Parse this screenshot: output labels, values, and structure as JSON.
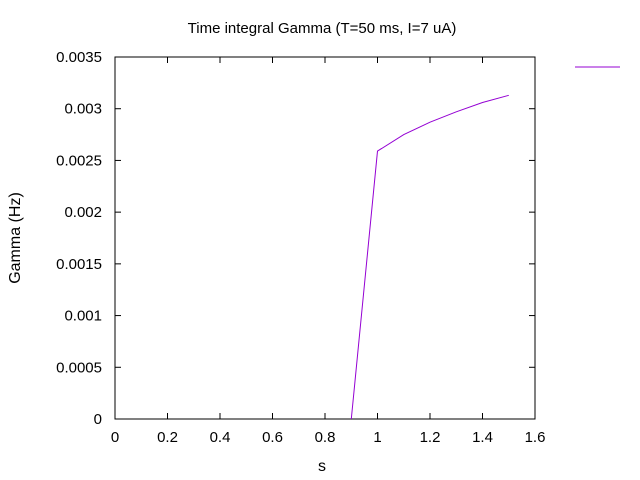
{
  "chart_data": {
    "type": "line",
    "title": "Time integral Gamma (T=50 ms, I=7 uA)",
    "xlabel": "s",
    "ylabel": "Gamma (Hz)",
    "xlim": [
      0,
      1.6
    ],
    "ylim": [
      0,
      0.0035
    ],
    "xticks": [
      "0",
      "0.2",
      "0.4",
      "0.6",
      "0.8",
      "1",
      "1.2",
      "1.4",
      "1.6"
    ],
    "yticks": [
      "0",
      "0.0005",
      "0.001",
      "0.0015",
      "0.002",
      "0.0025",
      "0.003",
      "0.0035"
    ],
    "xtick_values": [
      0,
      0.2,
      0.4,
      0.6,
      0.8,
      1.0,
      1.2,
      1.4,
      1.6
    ],
    "ytick_values": [
      0,
      0.0005,
      0.001,
      0.0015,
      0.002,
      0.0025,
      0.003,
      0.0035
    ],
    "grid": false,
    "legend": "top-right",
    "series": [
      {
        "color": "#9400d3",
        "x": [
          0.9,
          1.0,
          1.1,
          1.2,
          1.3,
          1.4,
          1.5
        ],
        "y": [
          0,
          0.00259,
          0.00275,
          0.00287,
          0.00297,
          0.00306,
          0.00313
        ]
      }
    ]
  }
}
